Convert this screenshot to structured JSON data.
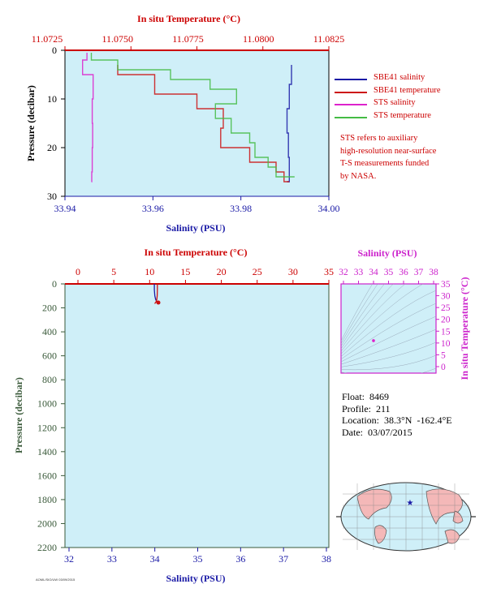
{
  "colors": {
    "background": "#cfeff8",
    "sbe_salinity": "#1a1aa6",
    "sbe_temperature": "#cc1111",
    "sts_salinity": "#dd22cc",
    "sts_temperature": "#44bb44",
    "temp_axis": "#cc0000",
    "sal_axis": "#1a1aa6",
    "pressure_axis": "#3a5a3a",
    "ts_axis": "#cc22cc"
  },
  "chart_data": [
    {
      "type": "line",
      "panel": "upper",
      "top_axis_label": "In situ Temperature (°C)",
      "top_ticks": [
        "11.0725",
        "11.0750",
        "11.0775",
        "11.0800",
        "11.0825"
      ],
      "top_range": [
        11.0725,
        11.0825
      ],
      "xlabel": "Salinity (PSU)",
      "x_ticks": [
        "33.94",
        "33.96",
        "33.98",
        "34.00"
      ],
      "x_range": [
        33.94,
        34.0
      ],
      "ylabel": "Pressure (decibar)",
      "y_ticks": [
        "0",
        "10",
        "20",
        "30"
      ],
      "y_range": [
        0,
        30
      ],
      "legend": [
        "SBE41 salinity",
        "SBE41 temperature",
        "STS salinity",
        "STS temperature"
      ],
      "note": [
        "STS refers to auxiliary",
        "high-resolution near-surface",
        "T-S measurements funded",
        "by NASA."
      ],
      "series": [
        {
          "name": "SBE41 salinity",
          "axis": "salinity",
          "pressure": [
            3.0,
            7.0,
            12.0,
            17.0,
            22.0,
            27.0
          ],
          "values": [
            33.9915,
            33.991,
            33.9905,
            33.9908,
            33.991,
            33.9905
          ]
        },
        {
          "name": "SBE41 temperature",
          "axis": "temperature",
          "pressure": [
            3.0,
            5.0,
            9.0,
            12.0,
            16.0,
            20.0,
            23.0,
            25.0,
            27.0
          ],
          "values": [
            11.0745,
            11.0759,
            11.0775,
            11.0785,
            11.0784,
            11.0795,
            11.0805,
            11.0808,
            11.081
          ]
        },
        {
          "name": "STS salinity",
          "axis": "salinity",
          "pressure": [
            0.5,
            2.0,
            5.0,
            10.0,
            15.0,
            20.0,
            25.0,
            27.0
          ],
          "values": [
            33.945,
            33.944,
            33.9464,
            33.9462,
            33.9463,
            33.9462,
            33.9461,
            33.946
          ]
        },
        {
          "name": "STS temperature",
          "axis": "temperature",
          "pressure": [
            0.5,
            2.0,
            4.0,
            6.0,
            8.0,
            11.0,
            14.0,
            17.0,
            19.0,
            22.0,
            24.0,
            26.0
          ],
          "values": [
            11.0735,
            11.0745,
            11.0765,
            11.078,
            11.079,
            11.0782,
            11.0788,
            11.0795,
            11.0797,
            11.0802,
            11.0805,
            11.0812
          ]
        }
      ]
    },
    {
      "type": "line",
      "panel": "lower",
      "top_axis_label": "In situ Temperature (°C)",
      "top_ticks": [
        "0",
        "5",
        "10",
        "15",
        "20",
        "25",
        "30",
        "35"
      ],
      "top_range": [
        0,
        35
      ],
      "xlabel": "Salinity (PSU)",
      "x_ticks": [
        "32",
        "33",
        "34",
        "35",
        "36",
        "37",
        "38"
      ],
      "x_range": [
        32,
        38
      ],
      "ylabel": "Pressure (decibar)",
      "y_ticks": [
        "0",
        "200",
        "400",
        "600",
        "800",
        "1000",
        "1200",
        "1400",
        "1600",
        "1800",
        "2000",
        "2200"
      ],
      "y_range": [
        0,
        2200
      ],
      "series": [
        {
          "name": "salinity",
          "axis": "salinity",
          "pressure": [
            0,
            50,
            100,
            130,
            150,
            165
          ],
          "values": [
            33.99,
            33.99,
            34.0,
            34.02,
            34.05,
            34.12
          ]
        },
        {
          "name": "temperature",
          "axis": "temperature",
          "pressure": [
            0,
            50,
            100,
            130,
            150,
            165
          ],
          "values": [
            11.08,
            11.08,
            11.05,
            11.0,
            10.9,
            10.7
          ]
        }
      ]
    },
    {
      "type": "scatter",
      "panel": "ts",
      "xlabel": "Salinity (PSU)",
      "x_ticks": [
        "32",
        "33",
        "34",
        "35",
        "36",
        "37",
        "38"
      ],
      "x_range": [
        32,
        38
      ],
      "ylabel": "In situ Temperature (°C)",
      "y_ticks": [
        "0",
        "5",
        "10",
        "15",
        "20",
        "25",
        "30",
        "35"
      ],
      "y_range": [
        0,
        35
      ],
      "points": [
        {
          "x": 34.0,
          "y": 11.0
        }
      ]
    }
  ],
  "float_info": {
    "float": "Float:  8469",
    "profile": "Profile:  211",
    "location": "Location:  38.3°N  -162.4°E",
    "date": "Date:  03/07/2015"
  },
  "map": {
    "marker_label": "float position"
  },
  "footer": "AOML/SIO/UW 03/09/2015"
}
